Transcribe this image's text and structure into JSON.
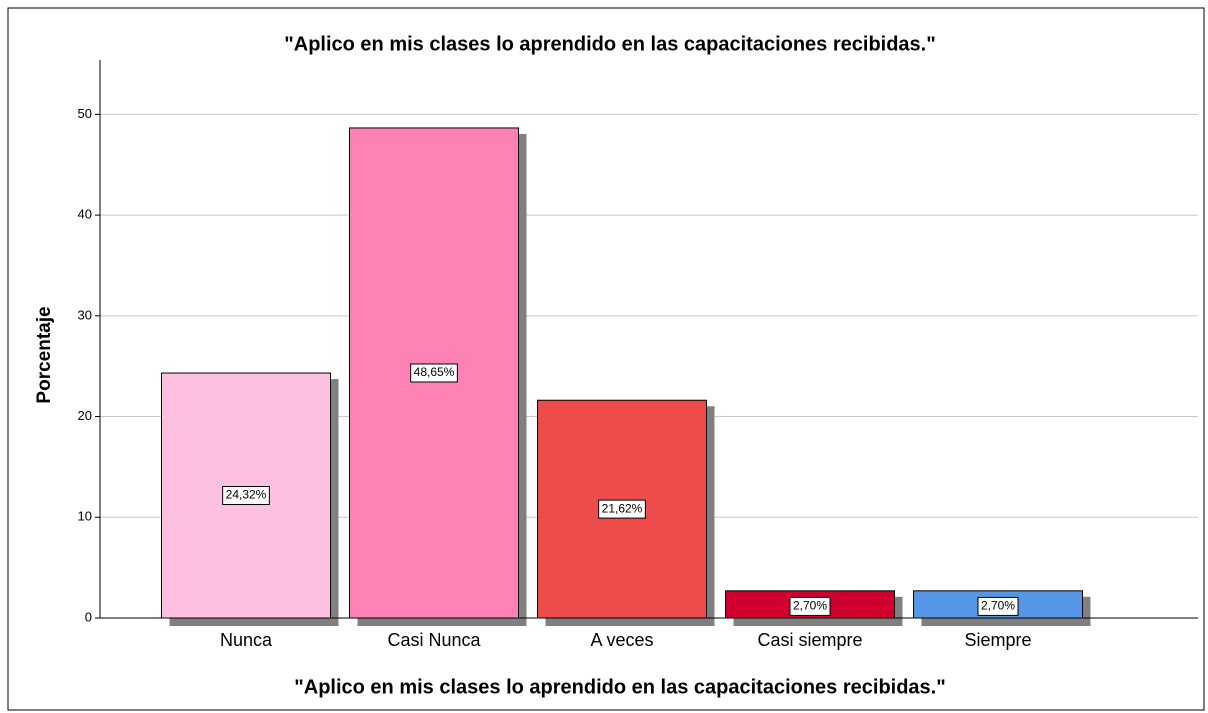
{
  "chart_data": {
    "type": "bar",
    "title": "\"Aplico en mis clases lo aprendido en las capacitaciones recibidas.\"",
    "x_label": "\"Aplico en mis clases lo aprendido en las capacitaciones recibidas.\"",
    "y_label": "Porcentaje",
    "categories": [
      "Nunca",
      "Casi Nunca",
      "A veces",
      "Casi siempre",
      "Siempre"
    ],
    "values": [
      24.32,
      48.65,
      21.62,
      2.7,
      2.7
    ],
    "value_labels": [
      "24,32%",
      "48,65%",
      "21,62%",
      "2,70%",
      "2,70%"
    ],
    "colors": [
      "#fdc0e0",
      "#ff82b6",
      "#ee4b4b",
      "#d0002e",
      "#5596e6"
    ],
    "ylim": [
      0,
      55
    ],
    "yticks": [
      0,
      10,
      20,
      30,
      40,
      50
    ],
    "grid": true
  }
}
